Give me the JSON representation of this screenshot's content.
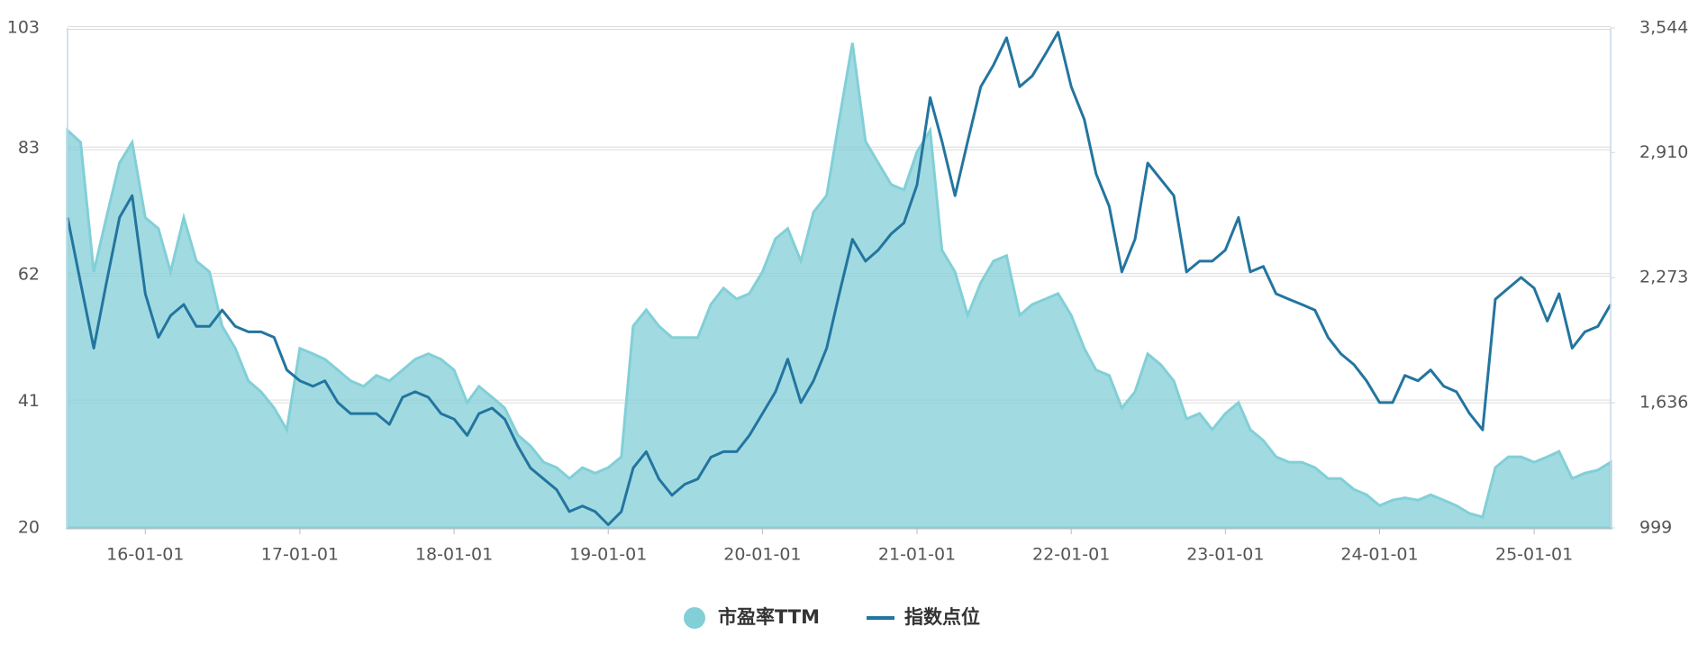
{
  "chart_data": {
    "type": "combo",
    "x": [
      "15-07-01",
      "15-08-01",
      "15-09-01",
      "15-10-01",
      "15-11-01",
      "15-12-01",
      "16-01-01",
      "16-02-01",
      "16-03-01",
      "16-04-01",
      "16-05-01",
      "16-06-01",
      "16-07-01",
      "16-08-01",
      "16-09-01",
      "16-10-01",
      "16-11-01",
      "16-12-01",
      "17-01-01",
      "17-02-01",
      "17-03-01",
      "17-04-01",
      "17-05-01",
      "17-06-01",
      "17-07-01",
      "17-08-01",
      "17-09-01",
      "17-10-01",
      "17-11-01",
      "17-12-01",
      "18-01-01",
      "18-02-01",
      "18-03-01",
      "18-04-01",
      "18-05-01",
      "18-06-01",
      "18-07-01",
      "18-08-01",
      "18-09-01",
      "18-10-01",
      "18-11-01",
      "18-12-01",
      "19-01-01",
      "19-02-01",
      "19-03-01",
      "19-04-01",
      "19-05-01",
      "19-06-01",
      "19-07-01",
      "19-08-01",
      "19-09-01",
      "19-10-01",
      "19-11-01",
      "19-12-01",
      "20-01-01",
      "20-02-01",
      "20-03-01",
      "20-04-01",
      "20-05-01",
      "20-06-01",
      "20-07-01",
      "20-08-01",
      "20-09-01",
      "20-10-01",
      "20-11-01",
      "20-12-01",
      "21-01-01",
      "21-02-01",
      "21-03-01",
      "21-04-01",
      "21-05-01",
      "21-06-01",
      "21-07-01",
      "21-08-01",
      "21-09-01",
      "21-10-01",
      "21-11-01",
      "21-12-01",
      "22-01-01",
      "22-02-01",
      "22-03-01",
      "22-04-01",
      "22-05-01",
      "22-06-01",
      "22-07-01",
      "22-08-01",
      "22-09-01",
      "22-10-01",
      "22-11-01",
      "22-12-01",
      "23-01-01",
      "23-02-01",
      "23-03-01",
      "23-04-01",
      "23-05-01",
      "23-06-01",
      "23-07-01",
      "23-08-01",
      "23-09-01",
      "23-10-01",
      "23-11-01",
      "23-12-01",
      "24-01-01",
      "24-02-01",
      "24-03-01",
      "24-04-01",
      "24-05-01",
      "24-06-01",
      "24-07-01",
      "24-08-01",
      "24-09-01",
      "24-10-01",
      "24-11-01",
      "24-12-01",
      "25-01-01",
      "25-02-01",
      "25-03-01",
      "25-04-01",
      "25-05-01",
      "25-06-01",
      "25-07-01"
    ],
    "xlim": [
      "15-07-01",
      "25-07-01"
    ],
    "xticks": [
      "16-01-01",
      "17-01-01",
      "18-01-01",
      "19-01-01",
      "20-01-01",
      "21-01-01",
      "22-01-01",
      "23-01-01",
      "24-01-01",
      "25-01-01"
    ],
    "ylim": [
      20,
      103
    ],
    "yticks": [
      20,
      41,
      62,
      83,
      103
    ],
    "y2lim": [
      999,
      3544
    ],
    "y2ticks": [
      999,
      {
        "value": 1636,
        "label": "1,636"
      },
      {
        "value": 2273,
        "label": "2,273"
      },
      {
        "value": 2910,
        "label": "2,910"
      },
      {
        "value": 3544,
        "label": "3,544"
      }
    ],
    "grid": true,
    "legend": "bottom",
    "series": [
      {
        "name": "市盈率TTM",
        "type": "area",
        "color": "#82cfd7",
        "values": [
          86,
          84,
          62.5,
          71.5,
          80.6,
          84,
          71.5,
          69.7,
          62.5,
          71.5,
          64.3,
          62.5,
          53.5,
          49.8,
          44.4,
          42.6,
          39.9,
          36.3,
          49.8,
          48.9,
          48,
          46.2,
          44.4,
          43.5,
          45.3,
          44.4,
          46.2,
          48,
          48.9,
          48,
          46.2,
          40.8,
          43.5,
          41.7,
          39.9,
          35.4,
          33.6,
          30.9,
          30,
          28.2,
          30,
          29.1,
          30,
          31.8,
          53.5,
          56.2,
          53.5,
          51.6,
          51.6,
          51.6,
          57.1,
          59.8,
          58,
          58.9,
          62.5,
          68,
          69.7,
          64.3,
          72.4,
          75.2,
          87.8,
          100.5,
          84.2,
          80.6,
          77,
          76.1,
          82.4,
          86,
          66.1,
          62.5,
          55.3,
          60.7,
          64.3,
          65.2,
          55.3,
          57.1,
          58,
          58.9,
          55.3,
          49.8,
          46.2,
          45.3,
          39.9,
          42.6,
          48.9,
          47.1,
          44.4,
          38.1,
          39,
          36.3,
          39,
          40.8,
          36.3,
          34.5,
          31.8,
          30.9,
          30.9,
          30,
          28.2,
          28.2,
          26.4,
          25.5,
          23.7,
          24.6,
          25,
          24.6,
          25.5,
          24.6,
          23.7,
          22.4,
          21.8,
          30,
          31.8,
          31.8,
          30.9,
          31.8,
          32.7,
          28.2,
          29.1,
          29.6,
          30.9
        ]
      },
      {
        "name": "指数点位",
        "type": "line",
        "axis": "y2",
        "color": "#23759f",
        "values": [
          2579,
          2246,
          1914,
          2246,
          2579,
          2690,
          2191,
          1969,
          2080,
          2136,
          2025,
          2025,
          2108,
          2025,
          1997,
          1997,
          1969,
          1803,
          1748,
          1720,
          1748,
          1637,
          1581,
          1581,
          1581,
          1526,
          1664,
          1692,
          1664,
          1581,
          1553,
          1470,
          1581,
          1609,
          1553,
          1415,
          1304,
          1248,
          1193,
          1082,
          1110,
          1082,
          1015,
          1082,
          1304,
          1387,
          1248,
          1165,
          1221,
          1248,
          1359,
          1387,
          1387,
          1470,
          1581,
          1692,
          1858,
          1637,
          1748,
          1914,
          2191,
          2468,
          2357,
          2413,
          2496,
          2551,
          2745,
          3189,
          2967,
          2690,
          2967,
          3245,
          3355,
          3494,
          3245,
          3300,
          3411,
          3522,
          3245,
          3078,
          2801,
          2635,
          2302,
          2468,
          2856,
          2773,
          2690,
          2302,
          2357,
          2357,
          2413,
          2579,
          2302,
          2330,
          2191,
          2163,
          2136,
          2108,
          1969,
          1886,
          1831,
          1748,
          1637,
          1637,
          1775,
          1748,
          1803,
          1720,
          1692,
          1581,
          1498,
          2163,
          2219,
          2274,
          2219,
          2052,
          2191,
          1914,
          1997,
          2025,
          2136
        ]
      }
    ]
  }
}
